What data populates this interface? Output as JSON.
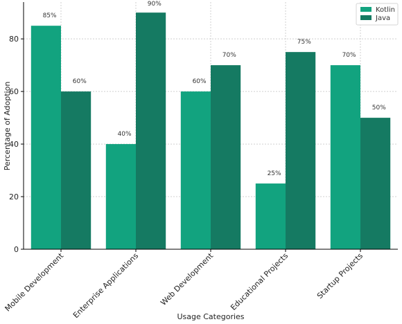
{
  "chart_data": {
    "type": "bar",
    "categories": [
      "Mobile Development",
      "Enterprise Applications",
      "Web Development",
      "Educational Projects",
      "Startup Projects"
    ],
    "series": [
      {
        "name": "Kotlin",
        "values": [
          85,
          40,
          60,
          25,
          70
        ],
        "color": "#12a37f"
      },
      {
        "name": "Java",
        "values": [
          60,
          90,
          70,
          75,
          50
        ],
        "color": "#157a62"
      }
    ],
    "data_labels": [
      [
        "85%",
        "40%",
        "60%",
        "25%",
        "70%"
      ],
      [
        "60%",
        "90%",
        "70%",
        "75%",
        "50%"
      ]
    ],
    "xlabel": "Usage Categories",
    "ylabel": "Percentage of Adoption",
    "ylim": [
      0,
      94
    ],
    "yticks": [
      "0",
      "20",
      "40",
      "60",
      "80"
    ],
    "grid": true,
    "legend_position": "top-right"
  }
}
